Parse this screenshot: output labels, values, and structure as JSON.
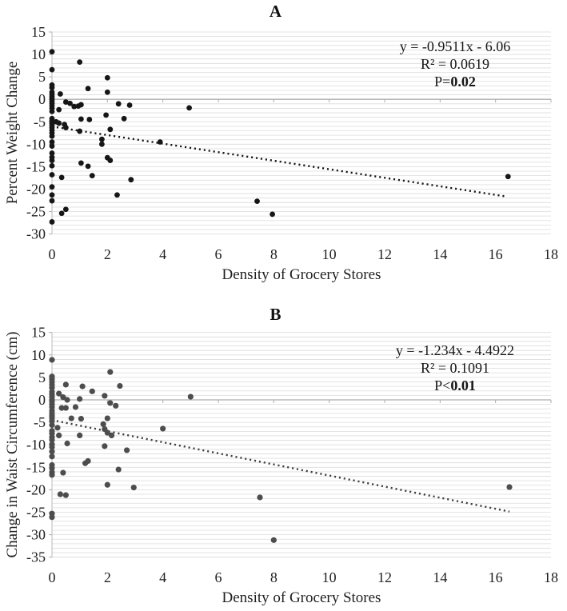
{
  "chart_data": [
    {
      "type": "scatter",
      "panel_label": "A",
      "xlabel": "Density of Grocery Stores",
      "ylabel": "Percent Weight Change",
      "xlim": [
        0,
        18
      ],
      "ylim": [
        -30,
        15
      ],
      "x_ticks": [
        0,
        2,
        4,
        6,
        8,
        10,
        12,
        14,
        16,
        18
      ],
      "y_ticks": [
        15,
        10,
        5,
        0,
        -5,
        -10,
        -15,
        -20,
        -25,
        -30
      ],
      "grid": "horizontal-minor-every-1",
      "annotation": {
        "equation": "y = -0.9511x - 6.06",
        "r_squared": "R² = 0.0619",
        "p_prefix": "P=",
        "p_value": "0.02"
      },
      "trendline": {
        "style": "dotted",
        "slope": -0.9511,
        "intercept": -6.06,
        "x_start": 0,
        "x_end": 16.4,
        "color": "#161616"
      },
      "point_color": "#161616",
      "point_radius": 3.4,
      "points": [
        [
          0,
          10.6
        ],
        [
          0,
          6.6
        ],
        [
          0,
          3.2
        ],
        [
          0,
          2.6
        ],
        [
          0,
          1.6
        ],
        [
          0,
          1.1
        ],
        [
          0,
          0.6
        ],
        [
          0,
          0.1
        ],
        [
          0,
          -0.4
        ],
        [
          0,
          -0.9
        ],
        [
          0,
          -1.4
        ],
        [
          0,
          -2.0
        ],
        [
          0,
          -2.7
        ],
        [
          0,
          -4.3
        ],
        [
          0,
          -4.8
        ],
        [
          0,
          -5.3
        ],
        [
          0,
          -5.8
        ],
        [
          0,
          -6.3
        ],
        [
          0,
          -6.9
        ],
        [
          0,
          -7.5
        ],
        [
          0,
          -8.2
        ],
        [
          0,
          -9.5
        ],
        [
          0,
          -10.4
        ],
        [
          0,
          -12.0
        ],
        [
          0,
          -12.9
        ],
        [
          0,
          -13.6
        ],
        [
          0,
          -14.8
        ],
        [
          0,
          -16.8
        ],
        [
          0,
          -19.5
        ],
        [
          0,
          -21.3
        ],
        [
          0,
          -22.6
        ],
        [
          0,
          -27.3
        ],
        [
          0.15,
          -5.0
        ],
        [
          0.25,
          -5.3
        ],
        [
          0.45,
          -5.6
        ],
        [
          0.5,
          -6.3
        ],
        [
          0.25,
          -2.3
        ],
        [
          0.3,
          1.2
        ],
        [
          0.5,
          -0.6
        ],
        [
          0.65,
          -0.9
        ],
        [
          0.8,
          -1.6
        ],
        [
          0.95,
          -1.5
        ],
        [
          1.05,
          -1.2
        ],
        [
          1.0,
          8.3
        ],
        [
          1.3,
          2.4
        ],
        [
          2.0,
          4.8
        ],
        [
          2.0,
          1.6
        ],
        [
          1.05,
          -4.4
        ],
        [
          1.35,
          -4.5
        ],
        [
          1.95,
          -3.5
        ],
        [
          2.4,
          -1.0
        ],
        [
          2.6,
          -4.3
        ],
        [
          2.8,
          -1.3
        ],
        [
          1.0,
          -7.1
        ],
        [
          2.1,
          -6.7
        ],
        [
          1.8,
          -8.9
        ],
        [
          1.8,
          -10.0
        ],
        [
          3.9,
          -9.5
        ],
        [
          4.95,
          -1.9
        ],
        [
          2.0,
          -13.0
        ],
        [
          2.1,
          -13.6
        ],
        [
          1.05,
          -14.2
        ],
        [
          1.3,
          -14.9
        ],
        [
          1.45,
          -17.0
        ],
        [
          0.35,
          -17.4
        ],
        [
          2.85,
          -17.9
        ],
        [
          2.35,
          -21.3
        ],
        [
          0.5,
          -24.5
        ],
        [
          0.35,
          -25.4
        ],
        [
          7.4,
          -22.7
        ],
        [
          7.95,
          -25.6
        ],
        [
          16.45,
          -17.2
        ]
      ]
    },
    {
      "type": "scatter",
      "panel_label": "B",
      "xlabel": "Density of Grocery Stores",
      "ylabel": "Change in Waist Circumference (cm)",
      "xlim": [
        0,
        18
      ],
      "ylim": [
        -35,
        15
      ],
      "x_ticks": [
        0,
        2,
        4,
        6,
        8,
        10,
        12,
        14,
        16,
        18
      ],
      "y_ticks": [
        15,
        10,
        5,
        0,
        -5,
        -10,
        -15,
        -20,
        -25,
        -30,
        -35
      ],
      "grid": "horizontal-minor-every-1",
      "annotation": {
        "equation": "y = -1.234x - 4.4922",
        "r_squared": "R² = 0.1091",
        "p_prefix": "P<",
        "p_value": "0.01"
      },
      "trendline": {
        "style": "dotted",
        "slope": -1.234,
        "intercept": -4.4922,
        "x_start": 0,
        "x_end": 16.5,
        "color": "#3d3d3d"
      },
      "point_color": "#4d4d4d",
      "point_radius": 3.6,
      "points": [
        [
          0,
          8.9
        ],
        [
          0,
          5.2
        ],
        [
          0,
          4.6
        ],
        [
          0,
          4.0
        ],
        [
          0,
          3.4
        ],
        [
          0,
          2.7
        ],
        [
          0,
          1.8
        ],
        [
          0,
          1.2
        ],
        [
          0,
          0.6
        ],
        [
          0,
          0.0
        ],
        [
          0,
          -0.4
        ],
        [
          0,
          -1.0
        ],
        [
          0,
          -1.6
        ],
        [
          0,
          -2.4
        ],
        [
          0,
          -3.0
        ],
        [
          0,
          -3.6
        ],
        [
          0,
          -4.1
        ],
        [
          0,
          -4.7
        ],
        [
          0,
          -5.6
        ],
        [
          0,
          -6.9
        ],
        [
          0,
          -7.5
        ],
        [
          0,
          -8.3
        ],
        [
          0,
          -8.9
        ],
        [
          0,
          -9.9
        ],
        [
          0,
          -10.5
        ],
        [
          0,
          -11.5
        ],
        [
          0,
          -12.6
        ],
        [
          0,
          -14.5
        ],
        [
          0,
          -15.2
        ],
        [
          0,
          -16.1
        ],
        [
          0,
          -16.7
        ],
        [
          0,
          -25.3
        ],
        [
          0,
          -26.1
        ],
        [
          0.25,
          1.4
        ],
        [
          0.4,
          0.6
        ],
        [
          0.55,
          0.0
        ],
        [
          0.5,
          3.4
        ],
        [
          1.1,
          3.0
        ],
        [
          1.45,
          1.9
        ],
        [
          2.1,
          6.2
        ],
        [
          2.45,
          3.1
        ],
        [
          1.0,
          0.2
        ],
        [
          1.9,
          0.9
        ],
        [
          2.1,
          -0.7
        ],
        [
          2.3,
          -1.3
        ],
        [
          0.35,
          -1.8
        ],
        [
          0.5,
          -1.8
        ],
        [
          0.85,
          -1.6
        ],
        [
          0.7,
          -4.1
        ],
        [
          1.05,
          -4.2
        ],
        [
          2.0,
          -4.1
        ],
        [
          0.2,
          -6.2
        ],
        [
          0.25,
          -7.9
        ],
        [
          1.0,
          -7.9
        ],
        [
          1.85,
          -5.4
        ],
        [
          1.9,
          -6.5
        ],
        [
          2.0,
          -7.3
        ],
        [
          2.15,
          -7.9
        ],
        [
          0.55,
          -9.7
        ],
        [
          1.9,
          -10.3
        ],
        [
          2.7,
          -11.2
        ],
        [
          4.0,
          -6.4
        ],
        [
          1.2,
          -14.1
        ],
        [
          1.3,
          -13.6
        ],
        [
          0.4,
          -16.2
        ],
        [
          2.4,
          -15.5
        ],
        [
          2.0,
          -18.9
        ],
        [
          2.95,
          -19.5
        ],
        [
          0.3,
          -21.0
        ],
        [
          0.5,
          -21.2
        ],
        [
          5.0,
          0.7
        ],
        [
          7.5,
          -21.7
        ],
        [
          8.0,
          -31.2
        ],
        [
          16.5,
          -19.4
        ]
      ]
    }
  ],
  "colors": {
    "background": "#ffffff",
    "minor_gridline": "#dcdcdc",
    "zero_axis_line": "#adadad",
    "left_axis_line": "#c4c4c4",
    "tick_mark": "#adadad",
    "label_text": "#1f1f1f"
  }
}
